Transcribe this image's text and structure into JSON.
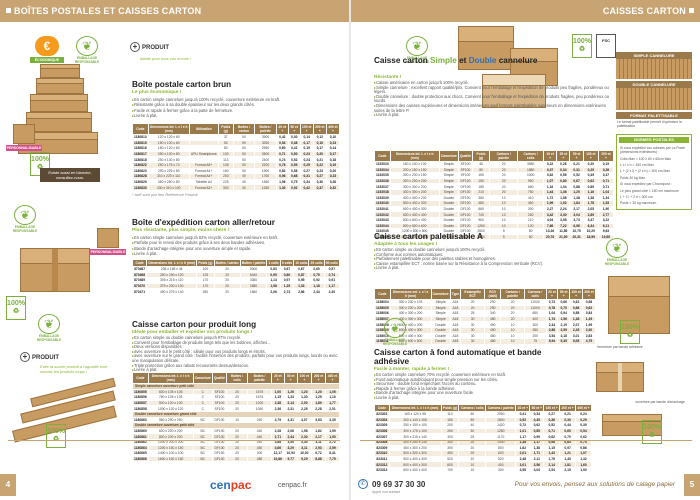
{
  "header": {
    "left_title": "BOÎTES POSTALES ET CAISSES CARTON",
    "right_title": "CAISSES CARTON"
  },
  "badges": {
    "economique": "ÉCONOMIQUE",
    "environnement": "EMBALLAGE RESPONSABLE",
    "personnalisable": "PERSONNALISABLE",
    "recyclable": "100%",
    "recyclable_text": "RECYCLABLE",
    "fsc": "FSC"
  },
  "produit_plus": {
    "label": "PRODUIT",
    "text": "Idéale pour tous vos envois !"
  },
  "produit_plus2": {
    "label": "PRODUIT",
    "text": "Evite la suture produit à l'aguaille sont soumis les produits longs !"
  },
  "sec1": {
    "title": "Boîte postale carton brun",
    "subtitle": "Le plus économique !",
    "bullets": [
      "En carton simple cannelure jusqu'à 100% recyclé, couverture extérieure en kraft.",
      "Résistante grâce à sa double épaisseur sur les deux grands côtés.",
      "Facile et rapide à fermer grâce à la patte de fermeture.",
      "Livrée à plat."
    ],
    "headers": [
      "Code",
      "Dimensions int. L x l x h (mm)",
      "Utilisation",
      "Poids (g)",
      "Boîtes / carton",
      "Boîtes / palette",
      "20 et +",
      "50 et +",
      "100 et +",
      "200 et +",
      "400 et +"
    ],
    "rows": [
      [
        "1180813",
        "120 x 120 x 60",
        "",
        "37",
        "50",
        "3900",
        "0,42",
        "0,30",
        "0,14",
        "0,12",
        "0,10"
      ],
      [
        "1180815",
        "150 x 100 x 60",
        "",
        "53",
        "50",
        "3250",
        "0,54",
        "0,38",
        "0,17",
        "0,15",
        "0,13"
      ],
      [
        "1180816",
        "180 x 120 x 60",
        "",
        "80",
        "50",
        "2960",
        "0,60",
        "0,42",
        "0,19",
        "0,17",
        "0,14"
      ],
      [
        "1180817",
        "250 x 100 x 80",
        "UPU Smartphone",
        "100",
        "50",
        "2600",
        "0,71",
        "0,50",
        "0,23",
        "0,20",
        "0,17"
      ],
      [
        "1180818",
        "250 x 130 x 80",
        "",
        "113",
        "50",
        "2400",
        "0,74",
        "0,52",
        "0,24",
        "0,21",
        "0,18"
      ],
      [
        "1180822",
        "250 x 175 x 70",
        "Format A5+",
        "135",
        "50",
        "2200",
        "0,78",
        "0,55",
        "0,25",
        "0,22",
        "0,19"
      ],
      [
        "1180823",
        "290 x 225 x 80",
        "Format A4+",
        "160",
        "50",
        "1900",
        "0,82",
        "0,58",
        "0,27",
        "0,23",
        "0,20"
      ],
      [
        "1180828",
        "310 x 220 x 110",
        "Format A4+",
        "200",
        "40",
        "1760",
        "0,96",
        "0,68",
        "0,31",
        "0,27",
        "0,23"
      ],
      [
        "1180829",
        "350 x 250 x 80",
        "Tablette A4",
        "225",
        "40",
        "1560",
        "1,06",
        "0,75",
        "0,34",
        "0,30",
        "0,26"
      ],
      [
        "1180830",
        "430 x 310 x 100",
        "Format A3+",
        "300",
        "30",
        "1280",
        "1,30",
        "0,92",
        "0,42",
        "0,37",
        "0,32"
      ]
    ],
    "footnote": "* tarif sont par lien Référence Produit",
    "dark_note": "Existe aussi en blanche, consultez-nous."
  },
  "sec2": {
    "title": "Boîte d'expédition carton aller/retour",
    "subtitle": "Plus résistante, plus simple, moins chère !",
    "bullets": [
      "En carton simple cannelure jusqu'à 82% recyclé, couverture extérieure en kraft.",
      "Parfaite pour le renvoi des produits grâce à ses deux bandes adhésives.",
      "Bande d'arrachage intégrée pour une ouverture simple et rapide.",
      "Livrée à plat."
    ],
    "headers": [
      "Code",
      "Dimensions int. L x l x h (mm)",
      "Poids (g)",
      "Boîtes / carton",
      "Boîtes / palette",
      "1 colis",
      "5 colis",
      "10 colis",
      "25 colis",
      "50 colis"
    ],
    "rows": [
      [
        "870467",
        "205 x 155 x 45",
        "100",
        "20",
        "5000",
        "0,83",
        "0,67",
        "0,67",
        "0,60",
        "0,57"
      ],
      [
        "870468",
        "250 x 150 x 100",
        "125",
        "20",
        "5440",
        "0,99",
        "0,80",
        "0,87",
        "0,75",
        "0,74"
      ],
      [
        "870469",
        "305 x 215 x 110",
        "170",
        "20",
        "3360",
        "1,14",
        "0,97",
        "0,95",
        "0,92",
        "0,91"
      ],
      [
        "870470",
        "375 x 230 x 100",
        "170",
        "20",
        "2880",
        "1,58",
        "1,25",
        "1,33",
        "1,18",
        "1,17"
      ],
      [
        "870471",
        "490 x 275 x 140",
        "280",
        "20",
        "1860",
        "2,06",
        "2,74",
        "2,86",
        "2,44",
        "2,40"
      ]
    ]
  },
  "sec3": {
    "title": "Caisse carton pour produit long",
    "subtitle": "Idéale pour emballer et expédier vos produits longs !",
    "bullets": [
      "En carton simple ou double cannelure jusqu'à 97% recyclé.",
      "Convient pour l'emballage de produits longs tels que les bobines, affiches...",
      "Deux versions disponibles :",
      "avec ouverture sur le petit côté : idéale pour vos produits longs et étroits,",
      "avec ouverture sur le grand côté : facilite l'insertion des produits, parfaits pour vos produits longs, lourds ou avec une manipulation délicate.",
      "Triple protection grâce aux rabats recouvrants dessus/dessous.",
      "Livrée à plat."
    ],
    "headers": [
      "Code",
      "Dimensions int. L x l x h (mm)",
      "Cannelure",
      "Qualité",
      "Boîtes / colis",
      "Boîtes / palette",
      "20 et +",
      "50 et +",
      "100 et +",
      "200 et +",
      "400 et +"
    ],
    "group1": "Simple cannelure ouverture petit côté",
    "group2": "Double cannelure ouverture grand côté",
    "group3": "Double cannelure ouverture petit côté",
    "rows1": [
      [
        "1180855",
        "600 x 105 x 105",
        "C",
        "SF100",
        "20",
        "1575",
        "1,00",
        "1,26",
        "1,20",
        "1,20",
        "1,05"
      ],
      [
        "1180856",
        "760 x 105 x 105",
        "C",
        "SF100",
        "20",
        "1575",
        "1,15",
        "1,33",
        "1,30",
        "1,25",
        "1,10"
      ],
      [
        "1180857",
        "900 x 100 x 100",
        "C",
        "SF100",
        "20",
        "1200",
        "2,38",
        "2,14",
        "2,00",
        "1,89",
        "1,77"
      ],
      [
        "1180858",
        "1000 x 120 x 120",
        "C",
        "SF100",
        "20",
        "1050",
        "2,36",
        "2,31",
        "2,25",
        "2,28",
        "2,01"
      ]
    ],
    "rows2": [
      [
        "1180863",
        "960 x 290 x 250",
        "BC",
        "DF100",
        "10",
        "240",
        "4,79",
        "4,31",
        "4,07",
        "3,83",
        "3,35"
      ]
    ],
    "rows3": [
      [
        "1180860",
        "600 x 200 x 200",
        "BC",
        "DF100",
        "20",
        "440",
        "2,28",
        "2,06",
        "1,98",
        "1,82",
        "1,59"
      ],
      [
        "1180861",
        "800 x 200 x 200",
        "BC",
        "DF100",
        "20",
        "440",
        "2,71",
        "2,44",
        "2,30",
        "2,17",
        "1,90"
      ],
      [
        "1180862",
        "1000 x 200 x 200",
        "BC",
        "DF100",
        "20",
        "440",
        "3,88",
        "3,50",
        "3,30",
        "3,11",
        "2,72"
      ],
      [
        "1180864",
        "1200 x 150 x 150",
        "BC",
        "DF100",
        "20",
        "450",
        "3,66",
        "3,29",
        "3,11",
        "2,93",
        "2,59"
      ],
      [
        "1180865",
        "1400 x 100 x 100",
        "BC",
        "DF100",
        "20",
        "400",
        "12,17",
        "10,93",
        "10,30",
        "9,72",
        "8,41"
      ],
      [
        "1180866",
        "1600 x 150 x 150",
        "BC",
        "DF100",
        "20",
        "480",
        "10,86",
        "9,77",
        "9,29",
        "8,88",
        "7,75"
      ]
    ]
  },
  "sec4": {
    "title_a": "Caisse carton ",
    "title_simple": "Simple",
    "title_mid": " et ",
    "title_double": "Double",
    "title_b": " cannelure",
    "subtitle": "Résistante !",
    "bullets": [
      "Caisse américaine en carton jusqu'à 100% recyclé.",
      "Simple cannelure : excellent rapport qualité/prix. Convient pour l'emballage et l'expédition de produits peu fragiles, pondéreux ou légers.",
      "Double cannelure : double protection aux chocs. Convient pour l'emballage et l'expédition de produits fragiles, peu pondéreux ou lourds.",
      "Dimensions des caisses supérieures et dimensions intérieures sauf formats palettisables supérieurs en dimensions extérieures suites de la lettre P.",
      "Livrée à plat."
    ],
    "headers": [
      "Code",
      "Dimensions int. L x l x h (mm)",
      "Cannelure",
      "Qualité",
      "Poids (g)",
      "Cartons / palette",
      "Cartons / colis",
      "10 et +",
      "25 et +",
      "50 et +",
      "100 et +",
      "200 et +"
    ],
    "rows": [
      [
        "1152033",
        "150 x 100 x 100",
        "Simple",
        "SF100",
        "45",
        "20",
        "3580",
        "0,22",
        "0,26",
        "0,21",
        "0,20",
        "0,19"
      ],
      [
        "1152034",
        "200 x 150 x 150",
        "Simple",
        "SF100",
        "80",
        "20",
        "1880",
        "0,37",
        "0,34",
        "0,31",
        "0,29",
        "0,28"
      ],
      [
        "1152035",
        "300 x 200 x 150",
        "Simple",
        "SF100",
        "155",
        "20",
        "1000",
        "0,62",
        "0,56",
        "0,52",
        "0,49",
        "0,47"
      ],
      [
        "1152036",
        "300 x 200 x 200",
        "Simple",
        "DF100",
        "150",
        "20",
        "960",
        "1,07",
        "0,80",
        "0,67",
        "0,62",
        "0,71"
      ],
      [
        "1152037",
        "300 x 300 x 200",
        "Simple",
        "DF100",
        "185",
        "20",
        "660",
        "1,16",
        "1,04",
        "0,88",
        "0,89",
        "0,71"
      ],
      [
        "1152038",
        "400 x 300 x 200",
        "Simple",
        "DF100",
        "210",
        "20",
        "760",
        "1,44",
        "1,36",
        "1,20",
        "1,16",
        "1,04"
      ],
      [
        "1152039",
        "400 x 400 x 200",
        "Double",
        "DF100",
        "380",
        "10",
        "410",
        "1,72",
        "1,58",
        "1,48",
        "1,38",
        "1,34"
      ],
      [
        "1152040",
        "500 x 400 x 300",
        "Double",
        "DF100",
        "480",
        "10",
        "460",
        "1,99",
        "1,92",
        "1,84",
        "1,78",
        "1,53"
      ],
      [
        "1152041",
        "600 x 400 x 300",
        "Double",
        "DF100",
        "560",
        "10",
        "300",
        "2,27",
        "2,24",
        "2,17",
        "2,05",
        "1,90"
      ],
      [
        "1152042",
        "600 x 400 x 400",
        "Double",
        "DF100",
        "740",
        "10",
        "260",
        "3,42",
        "3,30",
        "3,04",
        "2,89",
        "2,77"
      ],
      [
        "1152043",
        "800 x 600 x 400",
        "Double",
        "DF100",
        "960",
        "10",
        "210",
        "4,04",
        "3,98",
        "3,74",
        "3,47",
        "3,22"
      ],
      [
        "1152044",
        "800 x 600 x 600",
        "Double",
        "DF100",
        "1260",
        "10",
        "120",
        "7,66",
        "7,22",
        "6,96",
        "6,34",
        "6,11"
      ],
      [
        "1152045",
        "1200 x 800 x 800",
        "Double",
        "DF100",
        "2600",
        "5",
        "80",
        "13,26",
        "11,85",
        "10,75",
        "10,29",
        "9,63"
      ],
      [
        "1152046",
        "1200 x 800 x 1000",
        "Double",
        "DF100",
        "3100",
        "5",
        "60",
        "20,76",
        "21,50",
        "20,31",
        "18,59",
        "19,66"
      ]
    ]
  },
  "sec5": {
    "title": "Caisse carton palettisable A",
    "subtitle": "Adaptée à tous les usages !",
    "bullets": [
      "En carton simple ou double cannelure jusqu'à 100% recyclé.",
      "Conforme aux normes automatiques.",
      "Parfaitement palettisable pour des palettes stables et homogènes.",
      "Caisse estampillée ECT : norme basée sur la Résistance à la Compression Verticale (RCV).",
      "Livrée à plat."
    ],
    "headers": [
      "Code",
      "Dimensions ext. L x l x h (mm)",
      "Cannelure",
      "Type",
      "Estampille ECT",
      "RCV (daN)",
      "Cartons / palette",
      "Cartons / colis",
      "20 et +",
      "50 et +",
      "100 et +",
      "200 et +"
    ],
    "rows": [
      [
        "1158004",
        "300 x 200 x 125",
        "Simple",
        "A18",
        "20",
        "290",
        "20",
        "11000",
        "0,73",
        "0,66",
        "0,62",
        "0,58"
      ],
      [
        "1158005",
        "300 x 200 x 200",
        "Simple",
        "A18",
        "20",
        "290",
        "20",
        "11000",
        "0,78",
        "0,70",
        "0,66",
        "0,62"
      ],
      [
        "1158006",
        "400 x 300 x 200",
        "Simple",
        "A18",
        "25",
        "340",
        "20",
        "650",
        "1,04",
        "0,94",
        "0,88",
        "0,83"
      ],
      [
        "1158007",
        "400 x 300 x 300",
        "Simple",
        "A18",
        "30",
        "480",
        "20",
        "400",
        "1,74",
        "1,56",
        "1,48",
        "1,39"
      ],
      [
        "1158008",
        "600 x 400 x 200",
        "Double",
        "A18",
        "30",
        "490",
        "10",
        "300",
        "2,44",
        "2,19",
        "2,07",
        "1,95"
      ],
      [
        "1158009",
        "600 x 400 x 300",
        "Double",
        "A18",
        "30",
        "490",
        "10",
        "280",
        "2,88",
        "2,59",
        "2,45",
        "2,30"
      ],
      [
        "1158010",
        "600 x 400 x 400",
        "Double",
        "A18",
        "30",
        "480",
        "10",
        "200",
        "3,54",
        "3,18",
        "3,01",
        "2,83"
      ],
      [
        "1158011",
        "800 x 600 x 600",
        "Double",
        "A18",
        "30",
        "480",
        "10",
        "75",
        "5,94",
        "5,35",
        "5,05",
        "4,75"
      ]
    ]
  },
  "sec6": {
    "title": "Caisse carton à fond automatique et bande adhésive",
    "subtitle": "Facile à monter, rapide à fermer !",
    "bullets": [
      "En carton simple cannelure 70% recyclé, couverture extérieure en kraft.",
      "Fond automatique autobloquant pour simple pression sur les côtés.",
      "Sécurisée : double fond empêchant l'accès au contenu.",
      "Rapide à fermer grâce à la bande adhésive.",
      "Bande d'arrachage intégrée pour une ouverture facile.",
      "Livrée à plat."
    ],
    "headers": [
      "Code",
      "Dimensions int. L x l x h (mm)",
      "Poids (g)",
      "Cartons / colis",
      "Cartons / palette",
      "20 et +",
      "50 et +",
      "100 et +",
      "200 et +",
      "400 et +"
    ],
    "rows": [
      [
        "823303",
        "160 x 120 x 95",
        "110",
        "50",
        "2050",
        "0,41",
        "0,34",
        "0,27",
        "0,21",
        "0,24"
      ],
      [
        "823304",
        "200 x 140 x 105",
        "150",
        "50",
        "1800",
        "0,52",
        "0,45",
        "0,36",
        "0,30",
        "0,29"
      ],
      [
        "823305",
        "250 x 150 x 100",
        "200",
        "40",
        "1420",
        "0,72",
        "0,62",
        "0,52",
        "0,44",
        "0,39"
      ],
      [
        "823306",
        "300 x 175 x 100",
        "260",
        "30",
        "1280",
        "1,01",
        "0,85",
        "0,71",
        "0,60",
        "0,54"
      ],
      [
        "823307",
        "300 x 215 x 140",
        "300",
        "25",
        "1170",
        "1,17",
        "0,99",
        "0,82",
        "0,70",
        "0,62"
      ],
      [
        "823308",
        "400 x 250 x 130",
        "340",
        "20",
        "1000",
        "1,38",
        "1,17",
        "0,98",
        "0,83",
        "0,74"
      ],
      [
        "823309",
        "450 x 300 x 200",
        "390",
        "20",
        "800",
        "1,62",
        "1,38",
        "1,15",
        "0,97",
        "0,86"
      ],
      [
        "823310",
        "500 x 300 x 300",
        "450",
        "20",
        "600",
        "2,01",
        "1,71",
        "1,43",
        "1,21",
        "1,07"
      ],
      [
        "823311",
        "500 x 400 x 300",
        "520",
        "10",
        "520",
        "2,48",
        "2,11",
        "1,76",
        "1,49",
        "1,32"
      ],
      [
        "823312",
        "600 x 400 x 300",
        "600",
        "10",
        "400",
        "3,01",
        "2,56",
        "2,14",
        "1,81",
        "1,60"
      ],
      [
        "823313",
        "600 x 400 x 400",
        "700",
        "10",
        "300",
        "3,58",
        "3,04",
        "2,54",
        "2,15",
        "1,90"
      ]
    ],
    "cap1": "fermeture par bande adhésive",
    "cap2": "ouverture par bande d'arrachage"
  },
  "side": {
    "t1": "SIMPLE CANNELURE",
    "t2": "DOUBLE CANNELURE",
    "t3": "FORMAT PALETTISABLE",
    "note3": "Le format palettisable permet d'optimiser la palettisation.",
    "lit_title": "NORMES POSTALES",
    "lit_lines": [
      "Si vous expédiez vos colisses par La Poste (dimensions extérieures) :",
      "Colis Max = 100 x 60 x 60cm Max",
      "L x l x h = 150 cm Max",
      "L + (2 x l) + (2 x h) = 300 cm Max",
      "Poids 30 kg Max",
      "Si vous expédiez par Chronopost :",
      "Le plus grand côté < 150 cm maximum",
      "L + 2 l + 2 h < 300 cm",
      "Poids < 30 kg maximum"
    ]
  },
  "footer": {
    "page_left": "4",
    "page_right": "5",
    "logo_a": "cen",
    "logo_b": "pac",
    "url": "cenpac.fr",
    "phone": "09 69 37 30 30",
    "phone_sub": "Appel non surtaxé",
    "tagline": "Pour vos envois, pensez aux solutions de calage papier"
  }
}
